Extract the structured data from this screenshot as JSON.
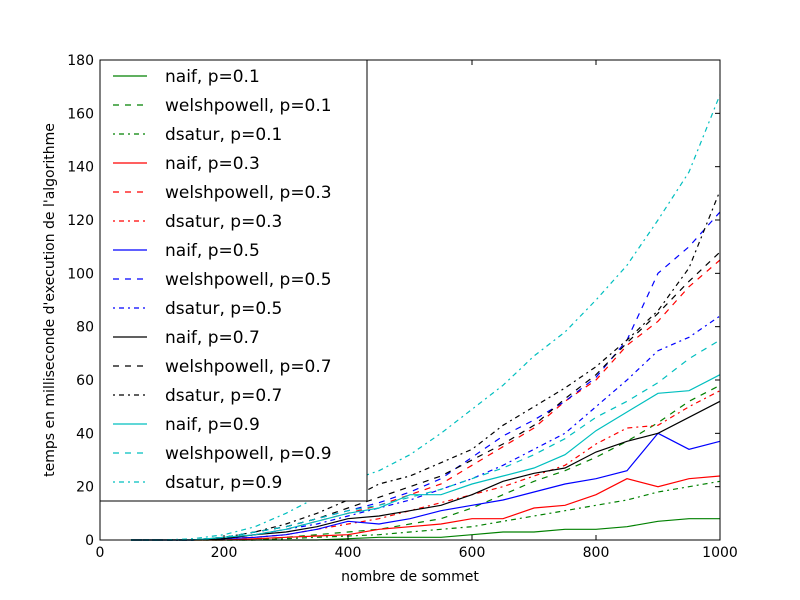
{
  "chart_data": {
    "type": "line",
    "xlabel": "nombre de sommet",
    "ylabel": "temps en milliseconde d'execution de l'algorithme",
    "xlim": [
      0,
      1000
    ],
    "ylim": [
      0,
      180
    ],
    "xticks": [
      0,
      200,
      400,
      600,
      800,
      1000
    ],
    "yticks": [
      0,
      20,
      40,
      60,
      80,
      100,
      120,
      140,
      160,
      180
    ],
    "grid": false,
    "legend_position": "upper-left",
    "x": [
      50,
      100,
      150,
      200,
      250,
      300,
      350,
      400,
      450,
      500,
      550,
      600,
      650,
      700,
      750,
      800,
      850,
      900,
      950,
      1000
    ],
    "series": [
      {
        "name": "naif, p=0.1",
        "color": "#008000",
        "style": "solid",
        "values": [
          0,
          0,
          0,
          0,
          0,
          0,
          0,
          0.5,
          1,
          1,
          1,
          2,
          3,
          3,
          4,
          4,
          5,
          7,
          8,
          8
        ]
      },
      {
        "name": "welshpowell, p=0.1",
        "color": "#008000",
        "style": "dashed",
        "values": [
          0,
          0,
          0,
          0,
          0,
          1,
          2,
          3,
          4,
          6,
          8,
          12,
          17,
          22,
          26,
          31,
          37,
          44,
          52,
          58
        ]
      },
      {
        "name": "dsatur, p=0.1",
        "color": "#008000",
        "style": "dashdot",
        "values": [
          0,
          0,
          0,
          0,
          0,
          0.5,
          1,
          1.5,
          2,
          3,
          4,
          5,
          7,
          9,
          11,
          13,
          15,
          18,
          20,
          22
        ]
      },
      {
        "name": "naif, p=0.3",
        "color": "#ff0000",
        "style": "solid",
        "values": [
          0,
          0,
          0,
          0,
          0.5,
          1,
          1.5,
          2,
          4,
          5,
          6,
          8,
          8,
          12,
          13,
          17,
          23,
          20,
          23,
          24
        ]
      },
      {
        "name": "welshpowell, p=0.3",
        "color": "#ff0000",
        "style": "dashed",
        "values": [
          0,
          0,
          0,
          1,
          2,
          4,
          7,
          10,
          13,
          17,
          21,
          28,
          35,
          42,
          52,
          60,
          73,
          82,
          95,
          105
        ]
      },
      {
        "name": "dsatur, p=0.3",
        "color": "#ff0000",
        "style": "dashdot",
        "values": [
          0,
          0,
          0,
          0.5,
          1,
          2,
          4,
          6,
          8,
          11,
          14,
          17,
          20,
          24,
          28,
          36,
          42,
          43,
          50,
          56
        ]
      },
      {
        "name": "naif, p=0.5",
        "color": "#0000ff",
        "style": "solid",
        "values": [
          0,
          0,
          0,
          0.5,
          1,
          2,
          4,
          7,
          6,
          8,
          11,
          13,
          15,
          18,
          21,
          23,
          26,
          40,
          34,
          37
        ]
      },
      {
        "name": "welshpowell, p=0.5",
        "color": "#0000ff",
        "style": "dashed",
        "values": [
          0,
          0,
          0,
          1,
          3,
          5,
          8,
          11,
          14,
          18,
          23,
          31,
          39,
          45,
          52,
          61,
          75,
          100,
          110,
          123
        ]
      },
      {
        "name": "dsatur, p=0.5",
        "color": "#0000ff",
        "style": "dashdot",
        "values": [
          0,
          0,
          0,
          0.5,
          2,
          4,
          6,
          9,
          12,
          15,
          19,
          23,
          28,
          34,
          40,
          50,
          60,
          71,
          76,
          84
        ]
      },
      {
        "name": "naif, p=0.7",
        "color": "#000000",
        "style": "solid",
        "values": [
          0,
          0,
          0,
          0.5,
          2,
          3,
          5,
          8,
          9,
          11,
          13,
          17,
          22,
          25,
          27,
          33,
          37,
          40,
          46,
          52
        ]
      },
      {
        "name": "welshpowell, p=0.7",
        "color": "#000000",
        "style": "dashed",
        "values": [
          0,
          0,
          0,
          1,
          3,
          5,
          8,
          12,
          16,
          20,
          24,
          30,
          36,
          43,
          53,
          62,
          74,
          85,
          97,
          108
        ]
      },
      {
        "name": "dsatur, p=0.7",
        "color": "#000000",
        "style": "dashdot",
        "values": [
          0,
          0,
          0,
          1,
          3,
          6,
          10,
          15,
          21,
          24,
          29,
          34,
          43,
          50,
          57,
          65,
          75,
          86,
          102,
          131
        ]
      },
      {
        "name": "naif, p=0.9",
        "color": "#00bfbf",
        "style": "solid",
        "values": [
          0,
          0,
          0,
          1,
          2,
          4,
          7,
          10,
          12,
          17,
          17,
          21,
          24,
          27,
          32,
          41,
          48,
          55,
          56,
          62
        ]
      },
      {
        "name": "welshpowell, p=0.9",
        "color": "#00bfbf",
        "style": "dashed",
        "values": [
          0,
          0,
          0,
          1,
          3,
          5,
          8,
          11,
          13,
          16,
          19,
          23,
          27,
          32,
          38,
          46,
          52,
          59,
          68,
          75
        ]
      },
      {
        "name": "dsatur, p=0.9",
        "color": "#00bfbf",
        "style": "dashdot",
        "values": [
          0,
          0,
          0.5,
          2,
          5,
          10,
          16,
          22,
          26,
          32,
          40,
          49,
          58,
          69,
          78,
          90,
          103,
          120,
          138,
          167
        ]
      }
    ]
  }
}
